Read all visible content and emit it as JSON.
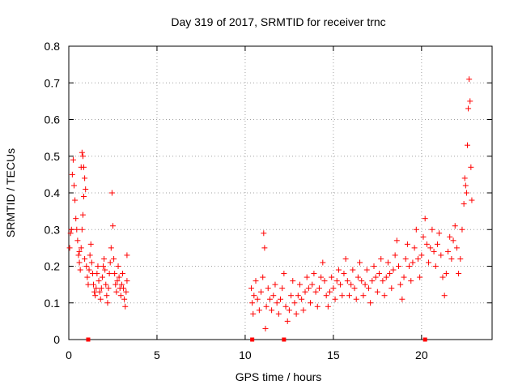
{
  "chart_data": {
    "type": "scatter",
    "title": "Day 319 of 2017, SRMTID for receiver trnc",
    "xlabel": "GPS time / hours",
    "ylabel": "SRMTID / TECUs",
    "xlim": [
      0,
      24
    ],
    "ylim": [
      0,
      0.8
    ],
    "xticks": [
      0,
      5,
      10,
      15,
      20
    ],
    "yticks": [
      0,
      0.1,
      0.2,
      0.3,
      0.4,
      0.5,
      0.6,
      0.7,
      0.8
    ],
    "grid": true,
    "marker": "+",
    "color": "#ff0000",
    "series": [
      {
        "name": "SRMTID",
        "points": [
          [
            0.05,
            0.25
          ],
          [
            0.1,
            0.29
          ],
          [
            0.15,
            0.3
          ],
          [
            0.2,
            0.45
          ],
          [
            0.25,
            0.49
          ],
          [
            0.3,
            0.42
          ],
          [
            0.35,
            0.38
          ],
          [
            0.4,
            0.33
          ],
          [
            0.45,
            0.3
          ],
          [
            0.5,
            0.27
          ],
          [
            0.55,
            0.23
          ],
          [
            0.6,
            0.21
          ],
          [
            0.65,
            0.19
          ],
          [
            0.7,
            0.25
          ],
          [
            0.75,
            0.3
          ],
          [
            0.8,
            0.34
          ],
          [
            0.85,
            0.39
          ],
          [
            0.7,
            0.47
          ],
          [
            0.75,
            0.51
          ],
          [
            0.8,
            0.5
          ],
          [
            0.85,
            0.47
          ],
          [
            0.9,
            0.44
          ],
          [
            0.95,
            0.41
          ],
          [
            0.6,
            0.24
          ],
          [
            0.9,
            0.22
          ],
          [
            1.0,
            0.2
          ],
          [
            1.05,
            0.17
          ],
          [
            1.1,
            0.15
          ],
          [
            1.15,
            0.19
          ],
          [
            1.2,
            0.23
          ],
          [
            1.25,
            0.26
          ],
          [
            1.3,
            0.21
          ],
          [
            1.35,
            0.18
          ],
          [
            1.4,
            0.15
          ],
          [
            1.45,
            0.13
          ],
          [
            1.5,
            0.12
          ],
          [
            1.55,
            0.14
          ],
          [
            1.6,
            0.18
          ],
          [
            1.65,
            0.2
          ],
          [
            1.7,
            0.16
          ],
          [
            1.75,
            0.13
          ],
          [
            1.8,
            0.11
          ],
          [
            1.85,
            0.14
          ],
          [
            1.9,
            0.17
          ],
          [
            1.95,
            0.2
          ],
          [
            2.0,
            0.22
          ],
          [
            2.05,
            0.19
          ],
          [
            2.1,
            0.15
          ],
          [
            2.15,
            0.12
          ],
          [
            2.2,
            0.1
          ],
          [
            2.25,
            0.14
          ],
          [
            2.3,
            0.18
          ],
          [
            2.35,
            0.21
          ],
          [
            2.4,
            0.25
          ],
          [
            2.45,
            0.4
          ],
          [
            2.5,
            0.31
          ],
          [
            2.55,
            0.22
          ],
          [
            2.6,
            0.18
          ],
          [
            2.65,
            0.15
          ],
          [
            2.7,
            0.13
          ],
          [
            2.75,
            0.16
          ],
          [
            2.8,
            0.2
          ],
          [
            2.85,
            0.17
          ],
          [
            2.9,
            0.14
          ],
          [
            2.95,
            0.12
          ],
          [
            3.0,
            0.15
          ],
          [
            3.05,
            0.18
          ],
          [
            3.1,
            0.14
          ],
          [
            3.15,
            0.11
          ],
          [
            3.2,
            0.09
          ],
          [
            3.25,
            0.13
          ],
          [
            3.3,
            0.16
          ],
          [
            3.3,
            0.23
          ],
          [
            10.35,
            0.14
          ],
          [
            10.4,
            0.1
          ],
          [
            10.45,
            0.07
          ],
          [
            10.5,
            0.12
          ],
          [
            10.6,
            0.16
          ],
          [
            10.7,
            0.11
          ],
          [
            10.8,
            0.08
          ],
          [
            10.9,
            0.13
          ],
          [
            11.0,
            0.17
          ],
          [
            11.05,
            0.29
          ],
          [
            11.1,
            0.25
          ],
          [
            11.15,
            0.03
          ],
          [
            11.2,
            0.09
          ],
          [
            11.3,
            0.14
          ],
          [
            11.4,
            0.11
          ],
          [
            11.5,
            0.08
          ],
          [
            11.6,
            0.12
          ],
          [
            11.7,
            0.15
          ],
          [
            11.8,
            0.1
          ],
          [
            11.9,
            0.07
          ],
          [
            12.0,
            0.11
          ],
          [
            12.1,
            0.14
          ],
          [
            12.2,
            0.18
          ],
          [
            12.3,
            0.09
          ],
          [
            12.4,
            0.05
          ],
          [
            12.5,
            0.08
          ],
          [
            12.6,
            0.12
          ],
          [
            12.7,
            0.16
          ],
          [
            12.8,
            0.1
          ],
          [
            12.9,
            0.07
          ],
          [
            13.0,
            0.12
          ],
          [
            13.1,
            0.15
          ],
          [
            13.2,
            0.11
          ],
          [
            13.3,
            0.08
          ],
          [
            13.4,
            0.13
          ],
          [
            13.5,
            0.17
          ],
          [
            13.6,
            0.14
          ],
          [
            13.7,
            0.1
          ],
          [
            13.8,
            0.15
          ],
          [
            13.9,
            0.18
          ],
          [
            14.0,
            0.13
          ],
          [
            14.1,
            0.09
          ],
          [
            14.2,
            0.14
          ],
          [
            14.3,
            0.17
          ],
          [
            14.4,
            0.21
          ],
          [
            14.5,
            0.16
          ],
          [
            14.6,
            0.12
          ],
          [
            14.7,
            0.09
          ],
          [
            14.8,
            0.13
          ],
          [
            14.9,
            0.17
          ],
          [
            15.0,
            0.14
          ],
          [
            15.1,
            0.11
          ],
          [
            15.2,
            0.16
          ],
          [
            15.3,
            0.19
          ],
          [
            15.4,
            0.15
          ],
          [
            15.5,
            0.12
          ],
          [
            15.6,
            0.18
          ],
          [
            15.7,
            0.22
          ],
          [
            15.8,
            0.16
          ],
          [
            15.9,
            0.12
          ],
          [
            16.0,
            0.15
          ],
          [
            16.1,
            0.19
          ],
          [
            16.2,
            0.14
          ],
          [
            16.3,
            0.11
          ],
          [
            16.4,
            0.17
          ],
          [
            16.5,
            0.21
          ],
          [
            16.6,
            0.16
          ],
          [
            16.7,
            0.12
          ],
          [
            16.8,
            0.15
          ],
          [
            16.9,
            0.19
          ],
          [
            17.0,
            0.14
          ],
          [
            17.1,
            0.1
          ],
          [
            17.2,
            0.16
          ],
          [
            17.3,
            0.2
          ],
          [
            17.4,
            0.17
          ],
          [
            17.5,
            0.13
          ],
          [
            17.6,
            0.18
          ],
          [
            17.7,
            0.22
          ],
          [
            17.8,
            0.16
          ],
          [
            17.9,
            0.12
          ],
          [
            18.0,
            0.17
          ],
          [
            18.1,
            0.21
          ],
          [
            18.2,
            0.18
          ],
          [
            18.3,
            0.14
          ],
          [
            18.4,
            0.19
          ],
          [
            18.5,
            0.23
          ],
          [
            18.6,
            0.27
          ],
          [
            18.7,
            0.2
          ],
          [
            18.8,
            0.15
          ],
          [
            18.9,
            0.11
          ],
          [
            19.0,
            0.17
          ],
          [
            19.1,
            0.22
          ],
          [
            19.2,
            0.26
          ],
          [
            19.3,
            0.2
          ],
          [
            19.4,
            0.16
          ],
          [
            19.5,
            0.21
          ],
          [
            19.6,
            0.25
          ],
          [
            19.7,
            0.3
          ],
          [
            19.8,
            0.22
          ],
          [
            19.9,
            0.17
          ],
          [
            20.0,
            0.23
          ],
          [
            20.1,
            0.28
          ],
          [
            20.2,
            0.33
          ],
          [
            20.3,
            0.26
          ],
          [
            20.4,
            0.21
          ],
          [
            20.5,
            0.25
          ],
          [
            20.6,
            0.3
          ],
          [
            20.7,
            0.24
          ],
          [
            20.8,
            0.2
          ],
          [
            20.9,
            0.26
          ],
          [
            21.0,
            0.29
          ],
          [
            21.1,
            0.23
          ],
          [
            21.2,
            0.17
          ],
          [
            21.3,
            0.12
          ],
          [
            21.4,
            0.18
          ],
          [
            21.5,
            0.24
          ],
          [
            21.6,
            0.28
          ],
          [
            21.7,
            0.22
          ],
          [
            21.8,
            0.27
          ],
          [
            21.9,
            0.31
          ],
          [
            22.0,
            0.25
          ],
          [
            22.1,
            0.18
          ],
          [
            22.2,
            0.22
          ],
          [
            22.3,
            0.3
          ],
          [
            22.4,
            0.37
          ],
          [
            22.45,
            0.44
          ],
          [
            22.5,
            0.42
          ],
          [
            22.55,
            0.4
          ],
          [
            22.6,
            0.53
          ],
          [
            22.65,
            0.63
          ],
          [
            22.7,
            0.71
          ],
          [
            22.75,
            0.65
          ],
          [
            22.8,
            0.47
          ],
          [
            22.85,
            0.38
          ]
        ]
      }
    ],
    "bottom_markers": [
      1.1,
      10.4,
      12.2,
      20.2
    ]
  }
}
